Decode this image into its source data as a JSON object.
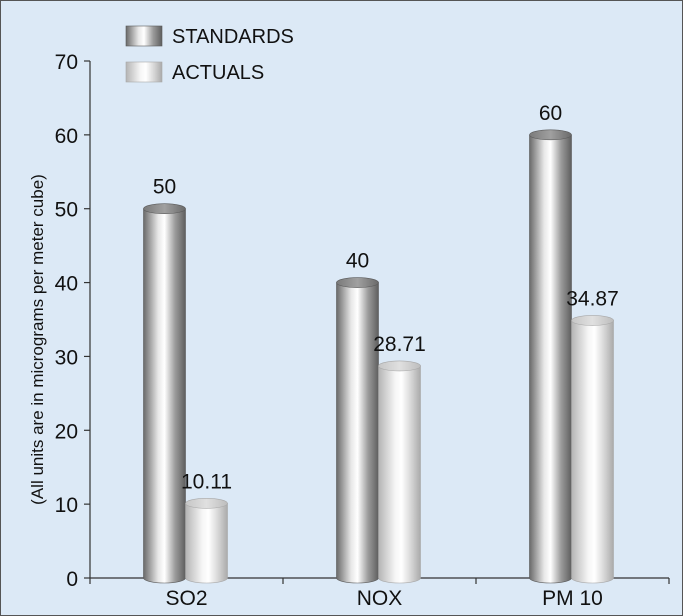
{
  "chart_data": {
    "type": "bar",
    "style": "3d-cylinder",
    "categories": [
      "SO2",
      "NOX",
      "PM 10"
    ],
    "series": [
      {
        "name": "STANDARDS",
        "values": [
          50,
          40,
          60
        ],
        "labels": [
          "50",
          "40",
          "60"
        ]
      },
      {
        "name": "ACTUALS",
        "values": [
          10.11,
          28.71,
          34.87
        ],
        "labels": [
          "10.11",
          "28.71",
          "34.87"
        ]
      }
    ],
    "title": "",
    "xlabel": "",
    "ylabel": "(All units are in micrograms per meter cube)",
    "ylim": [
      0,
      70
    ],
    "yticks": [
      0,
      10,
      20,
      30,
      40,
      50,
      60,
      70
    ],
    "grid": false,
    "legend_position": "top-left",
    "colors": {
      "background": "#dce9f6",
      "standards_dark": "#6e6e6e",
      "standards_light": "#ffffff",
      "actuals_dark": "#bcbcbc",
      "actuals_light": "#ffffff",
      "axis": "#333333"
    }
  }
}
